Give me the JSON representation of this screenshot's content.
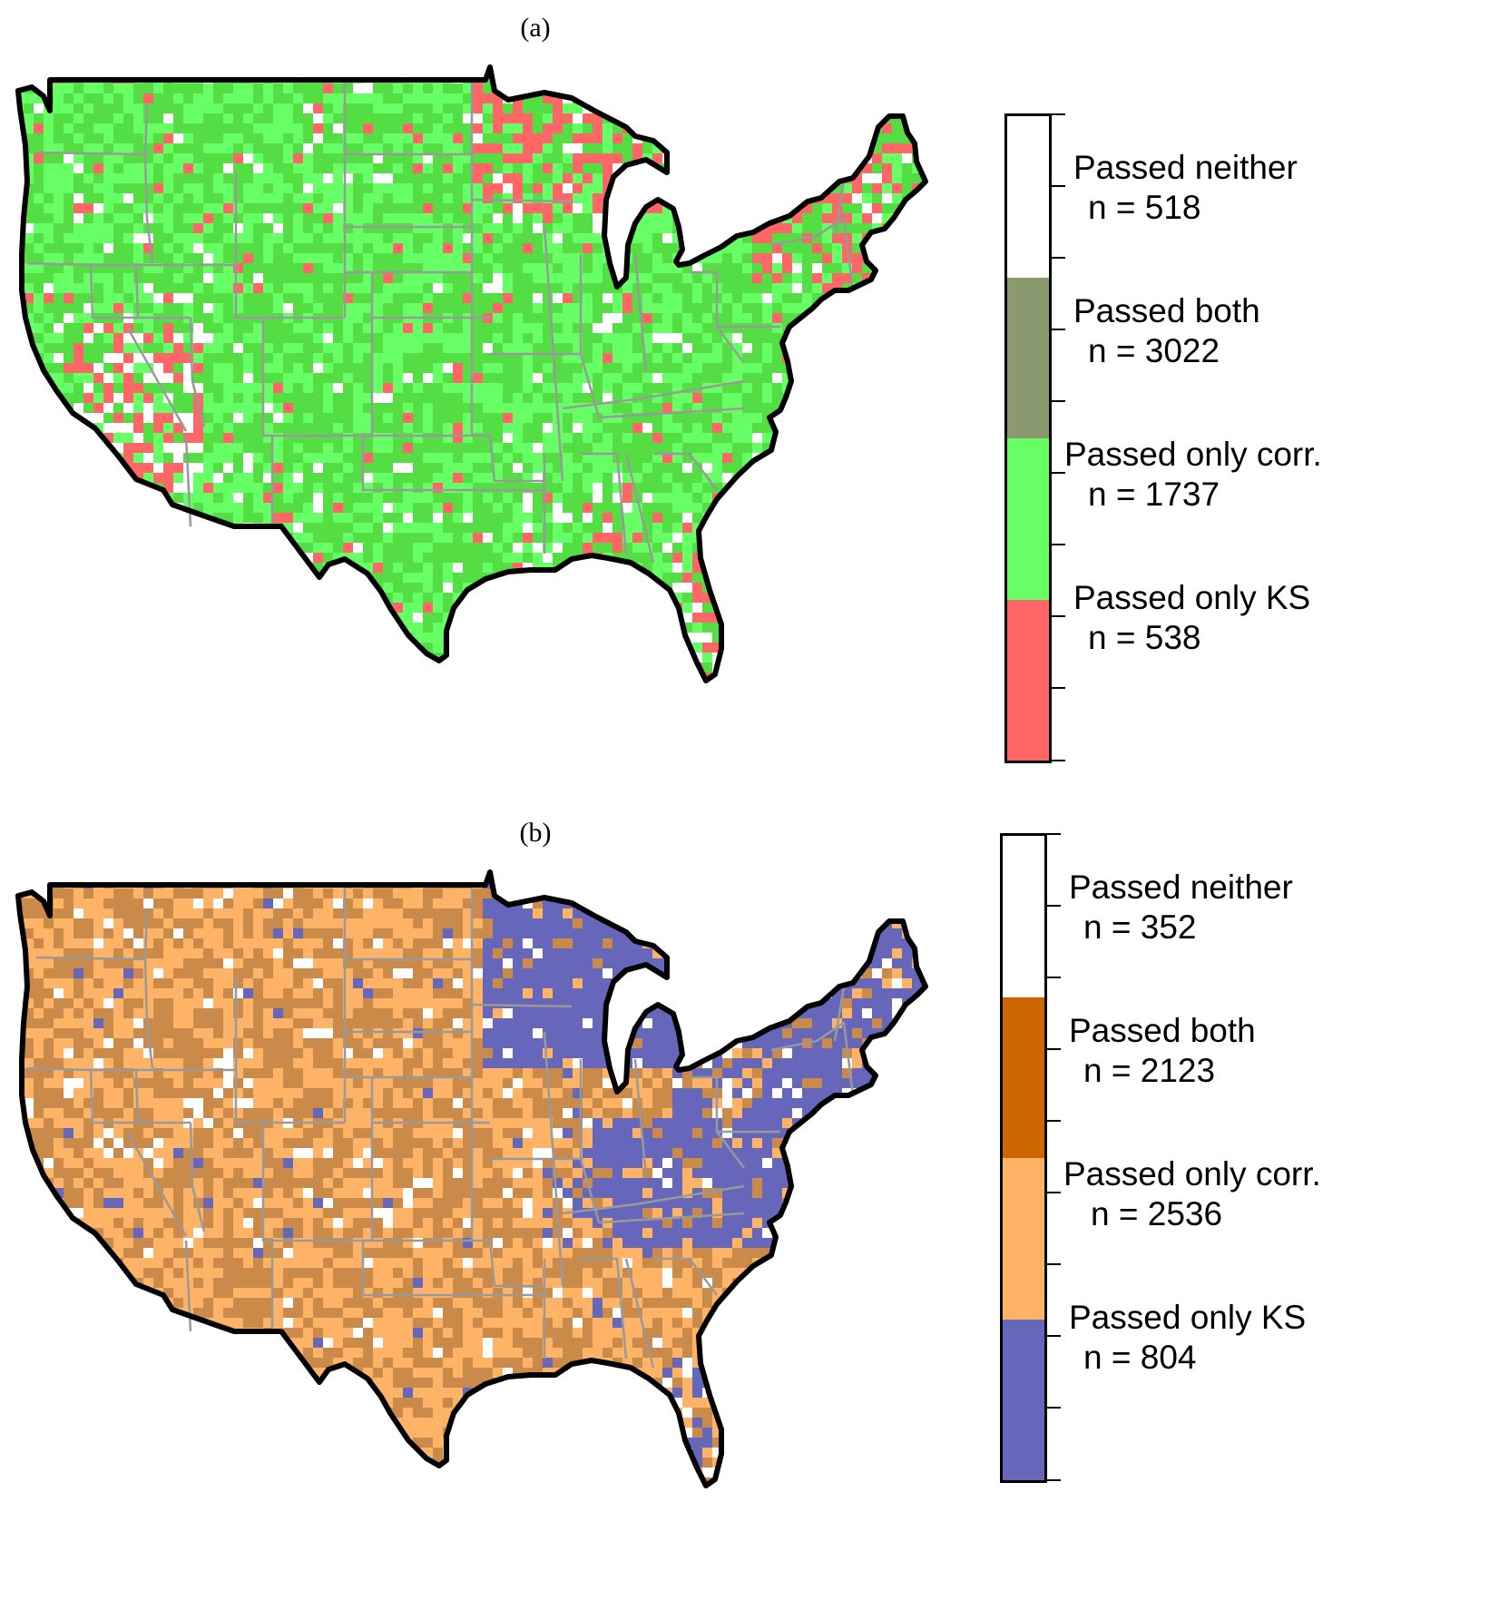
{
  "panels": [
    {
      "label": "(a)",
      "colors": {
        "neither": "#ffffff",
        "both": "#8a9a6e",
        "corr": "#66ff66",
        "ks": "#ff6666",
        "dominant": "#55dd44"
      },
      "legend": [
        {
          "label": "Passed neither",
          "count": "n = 518",
          "color": "#ffffff"
        },
        {
          "label": "Passed both",
          "count": "n = 3022",
          "color": "#8a9a6e"
        },
        {
          "label": "Passed only corr.",
          "count": "n = 1737",
          "color": "#66ff66"
        },
        {
          "label": "Passed only KS",
          "count": "n = 538",
          "color": "#ff6666"
        }
      ]
    },
    {
      "label": "(b)",
      "colors": {
        "neither": "#ffffff",
        "both": "#cc6600",
        "corr": "#ffb366",
        "ks": "#6666bb",
        "dominant": "#c98a4a"
      },
      "legend": [
        {
          "label": "Passed neither",
          "count": "n = 352",
          "color": "#ffffff"
        },
        {
          "label": "Passed both",
          "count": "n = 2123",
          "color": "#cc6600"
        },
        {
          "label": "Passed only corr.",
          "count": "n = 2536",
          "color": "#ffb366"
        },
        {
          "label": "Passed only KS",
          "count": "n = 804",
          "color": "#6666bb"
        }
      ]
    }
  ]
}
